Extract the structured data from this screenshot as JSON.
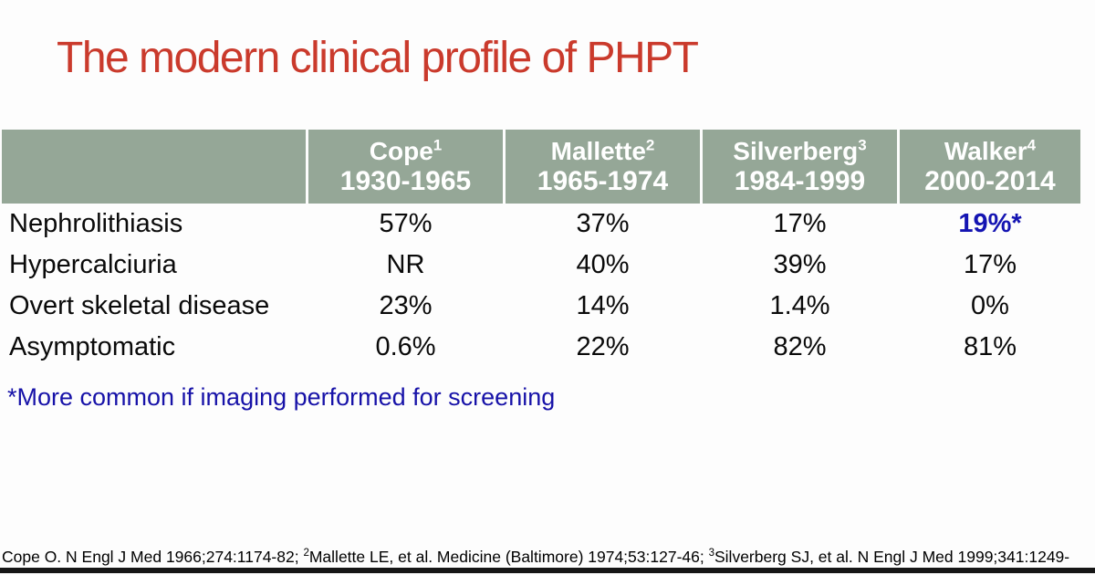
{
  "title": "The modern clinical profile of PHPT",
  "colors": {
    "title_red": "#ca3a2c",
    "header_green": "#95a797",
    "header_text": "#ffffff",
    "body_text": "#0a0a0a",
    "accent_blue": "#1414b2",
    "footnote_blue": "#1712a8"
  },
  "table": {
    "columns": [
      {
        "name": "Cope",
        "sup": "1",
        "years": "1930-1965"
      },
      {
        "name": "Mallette",
        "sup": "2",
        "years": "1965-1974"
      },
      {
        "name": "Silverberg",
        "sup": "3",
        "years": "1984-1999"
      },
      {
        "name": "Walker",
        "sup": "4",
        "years": "2000-2014"
      }
    ],
    "rows": [
      {
        "label": "Nephrolithiasis",
        "values": [
          "57%",
          "37%",
          "17%",
          "19%*"
        ]
      },
      {
        "label": "Hypercalciuria",
        "values": [
          "NR",
          "40%",
          "39%",
          "17%"
        ]
      },
      {
        "label": "Overt skeletal disease",
        "values": [
          "23%",
          "14%",
          "1.4%",
          "0%"
        ]
      },
      {
        "label": "Asymptomatic",
        "values": [
          "0.6%",
          "22%",
          "82%",
          "81%"
        ]
      }
    ]
  },
  "footnote": "*More common if imaging performed for screening",
  "citation": {
    "p1": "Cope O. N Engl J Med 1966;274:1174-82; ",
    "s1": "2",
    "p2": "Mallette LE, et al. Medicine (Baltimore) 1974;53:127-46; ",
    "s2": "3",
    "p3": "Silverberg SJ, et al. N Engl J Med 1999;341:1249-"
  }
}
